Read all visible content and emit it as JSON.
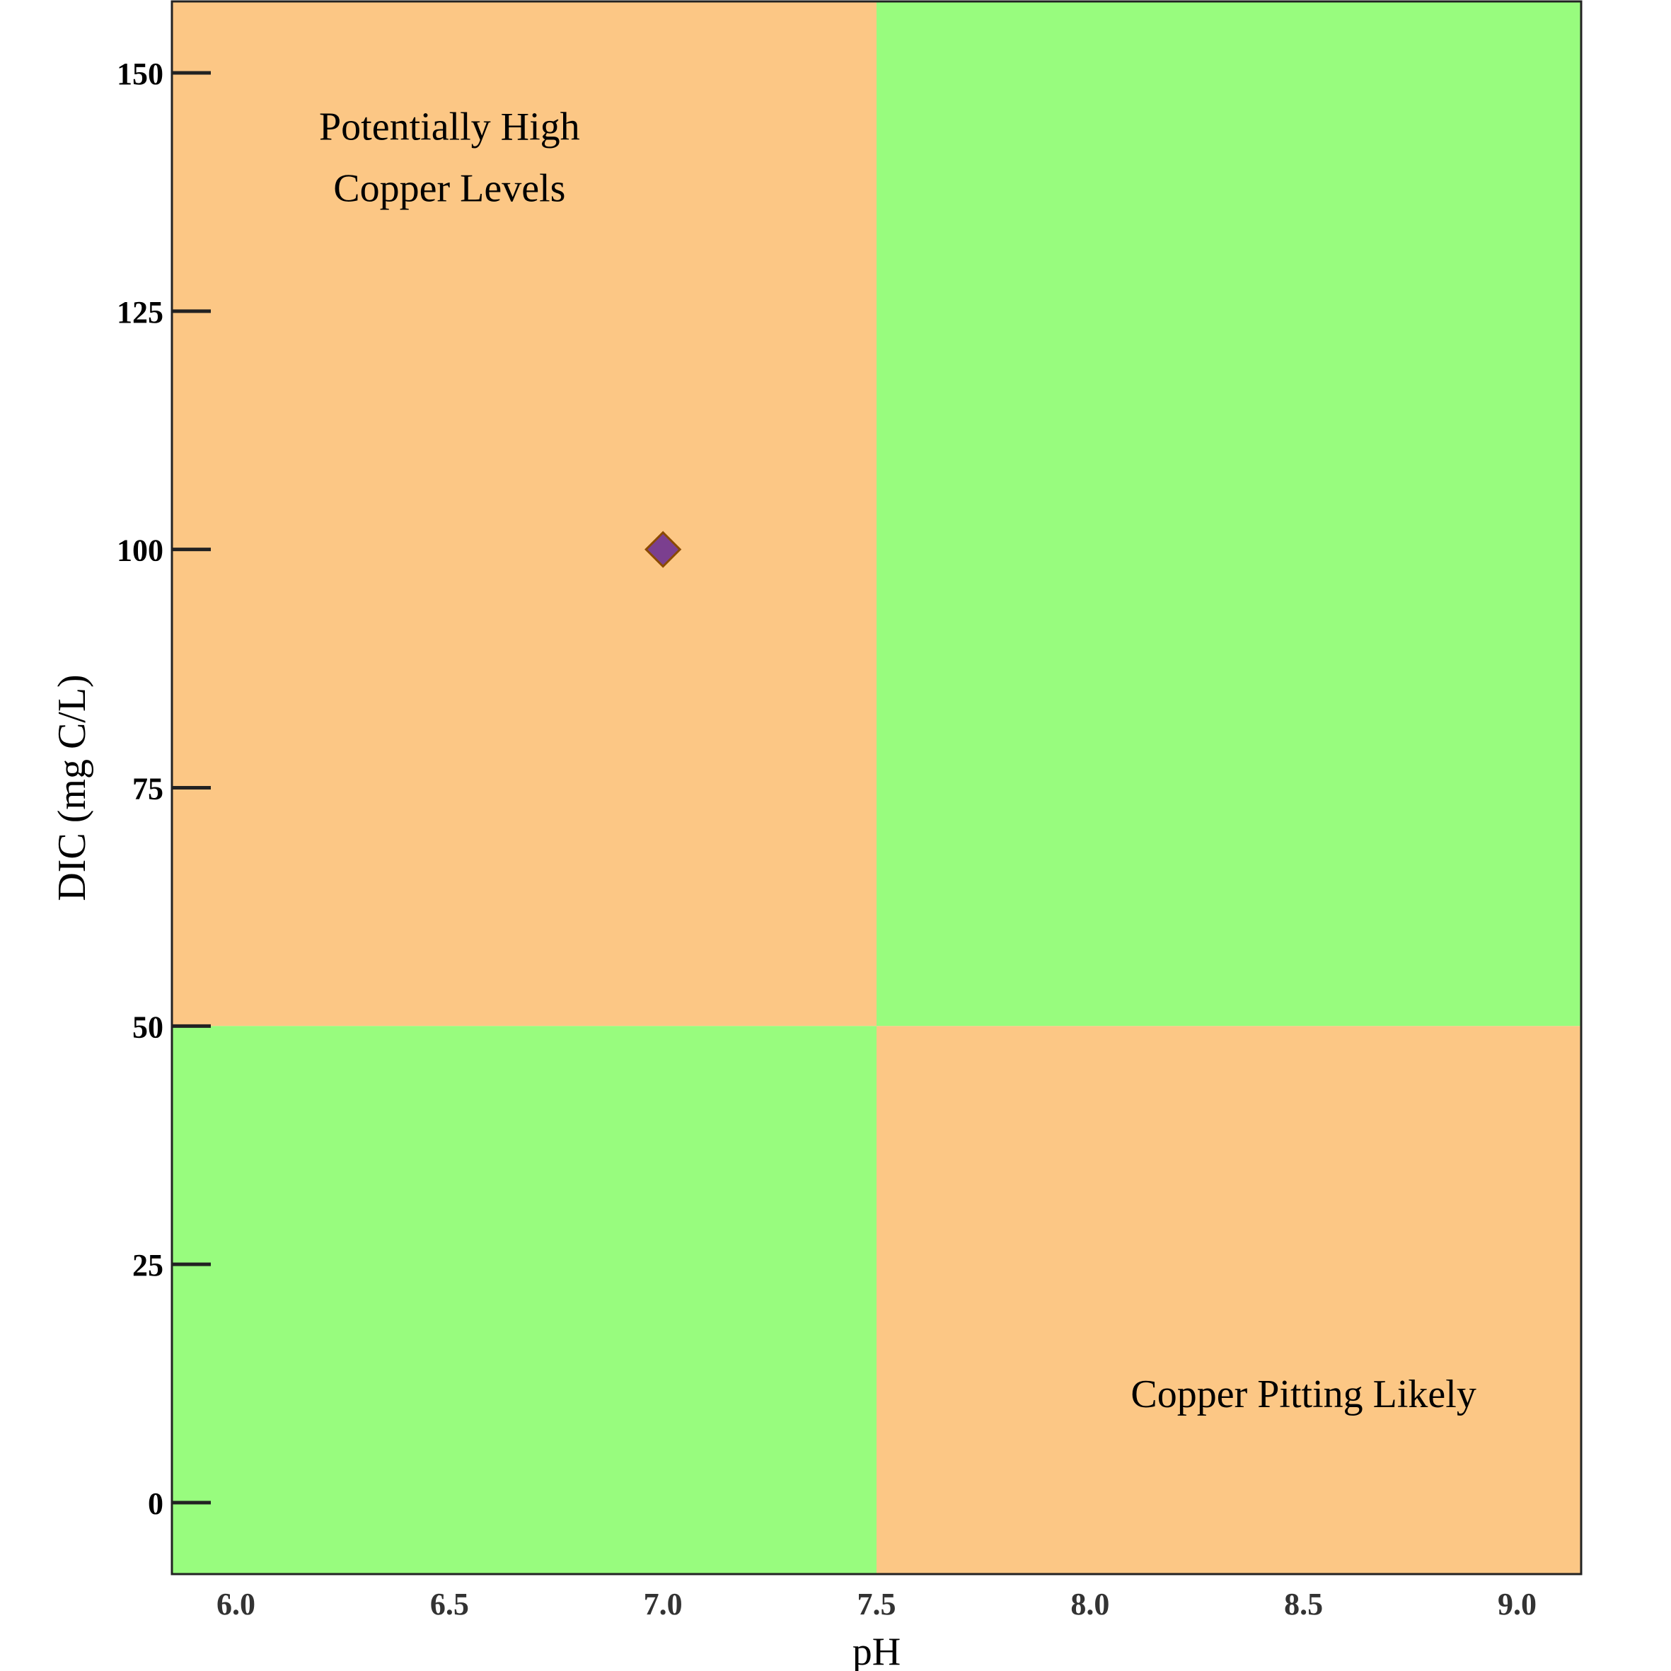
{
  "chart_data": {
    "type": "scatter",
    "title": "",
    "xlabel": "pH",
    "ylabel": "DIC (mg C/L)",
    "xlim": [
      5.85,
      9.15
    ],
    "ylim": [
      -7.5,
      157.5
    ],
    "xticks": [
      6.0,
      6.5,
      7.0,
      7.5,
      8.0,
      8.5,
      9.0
    ],
    "xtick_labels": [
      "6.0",
      "6.5",
      "7.0",
      "7.5",
      "8.0",
      "8.5",
      "9.0"
    ],
    "yticks": [
      0,
      25,
      50,
      75,
      100,
      125,
      150
    ],
    "ytick_labels": [
      "0",
      "25",
      "50",
      "75",
      "100",
      "125",
      "150"
    ],
    "grid": false,
    "regions": [
      {
        "x_from": 5.85,
        "x_to": 7.5,
        "y_from": 50,
        "y_to": 157.5,
        "color": "#fcc785",
        "label": "Potentially High Copper Levels"
      },
      {
        "x_from": 7.5,
        "x_to": 9.15,
        "y_from": 50,
        "y_to": 157.5,
        "color": "#98fc7e",
        "label": ""
      },
      {
        "x_from": 5.85,
        "x_to": 7.5,
        "y_from": -7.5,
        "y_to": 50,
        "color": "#98fc7e",
        "label": ""
      },
      {
        "x_from": 7.5,
        "x_to": 9.15,
        "y_from": -7.5,
        "y_to": 50,
        "color": "#fcc785",
        "label": "Copper Pitting Likely"
      }
    ],
    "annotations": [
      {
        "lines": [
          "Potentially High",
          "Copper Levels"
        ],
        "x": 6.5,
        "y": 143
      },
      {
        "lines": [
          "Copper Pitting Likely"
        ],
        "x": 8.5,
        "y": 10
      }
    ],
    "series": [
      {
        "marker": "diamond",
        "color": "#7b3f8f",
        "edge_color": "#8b4a00",
        "points": [
          {
            "x": 7.0,
            "y": 100
          }
        ]
      }
    ]
  }
}
